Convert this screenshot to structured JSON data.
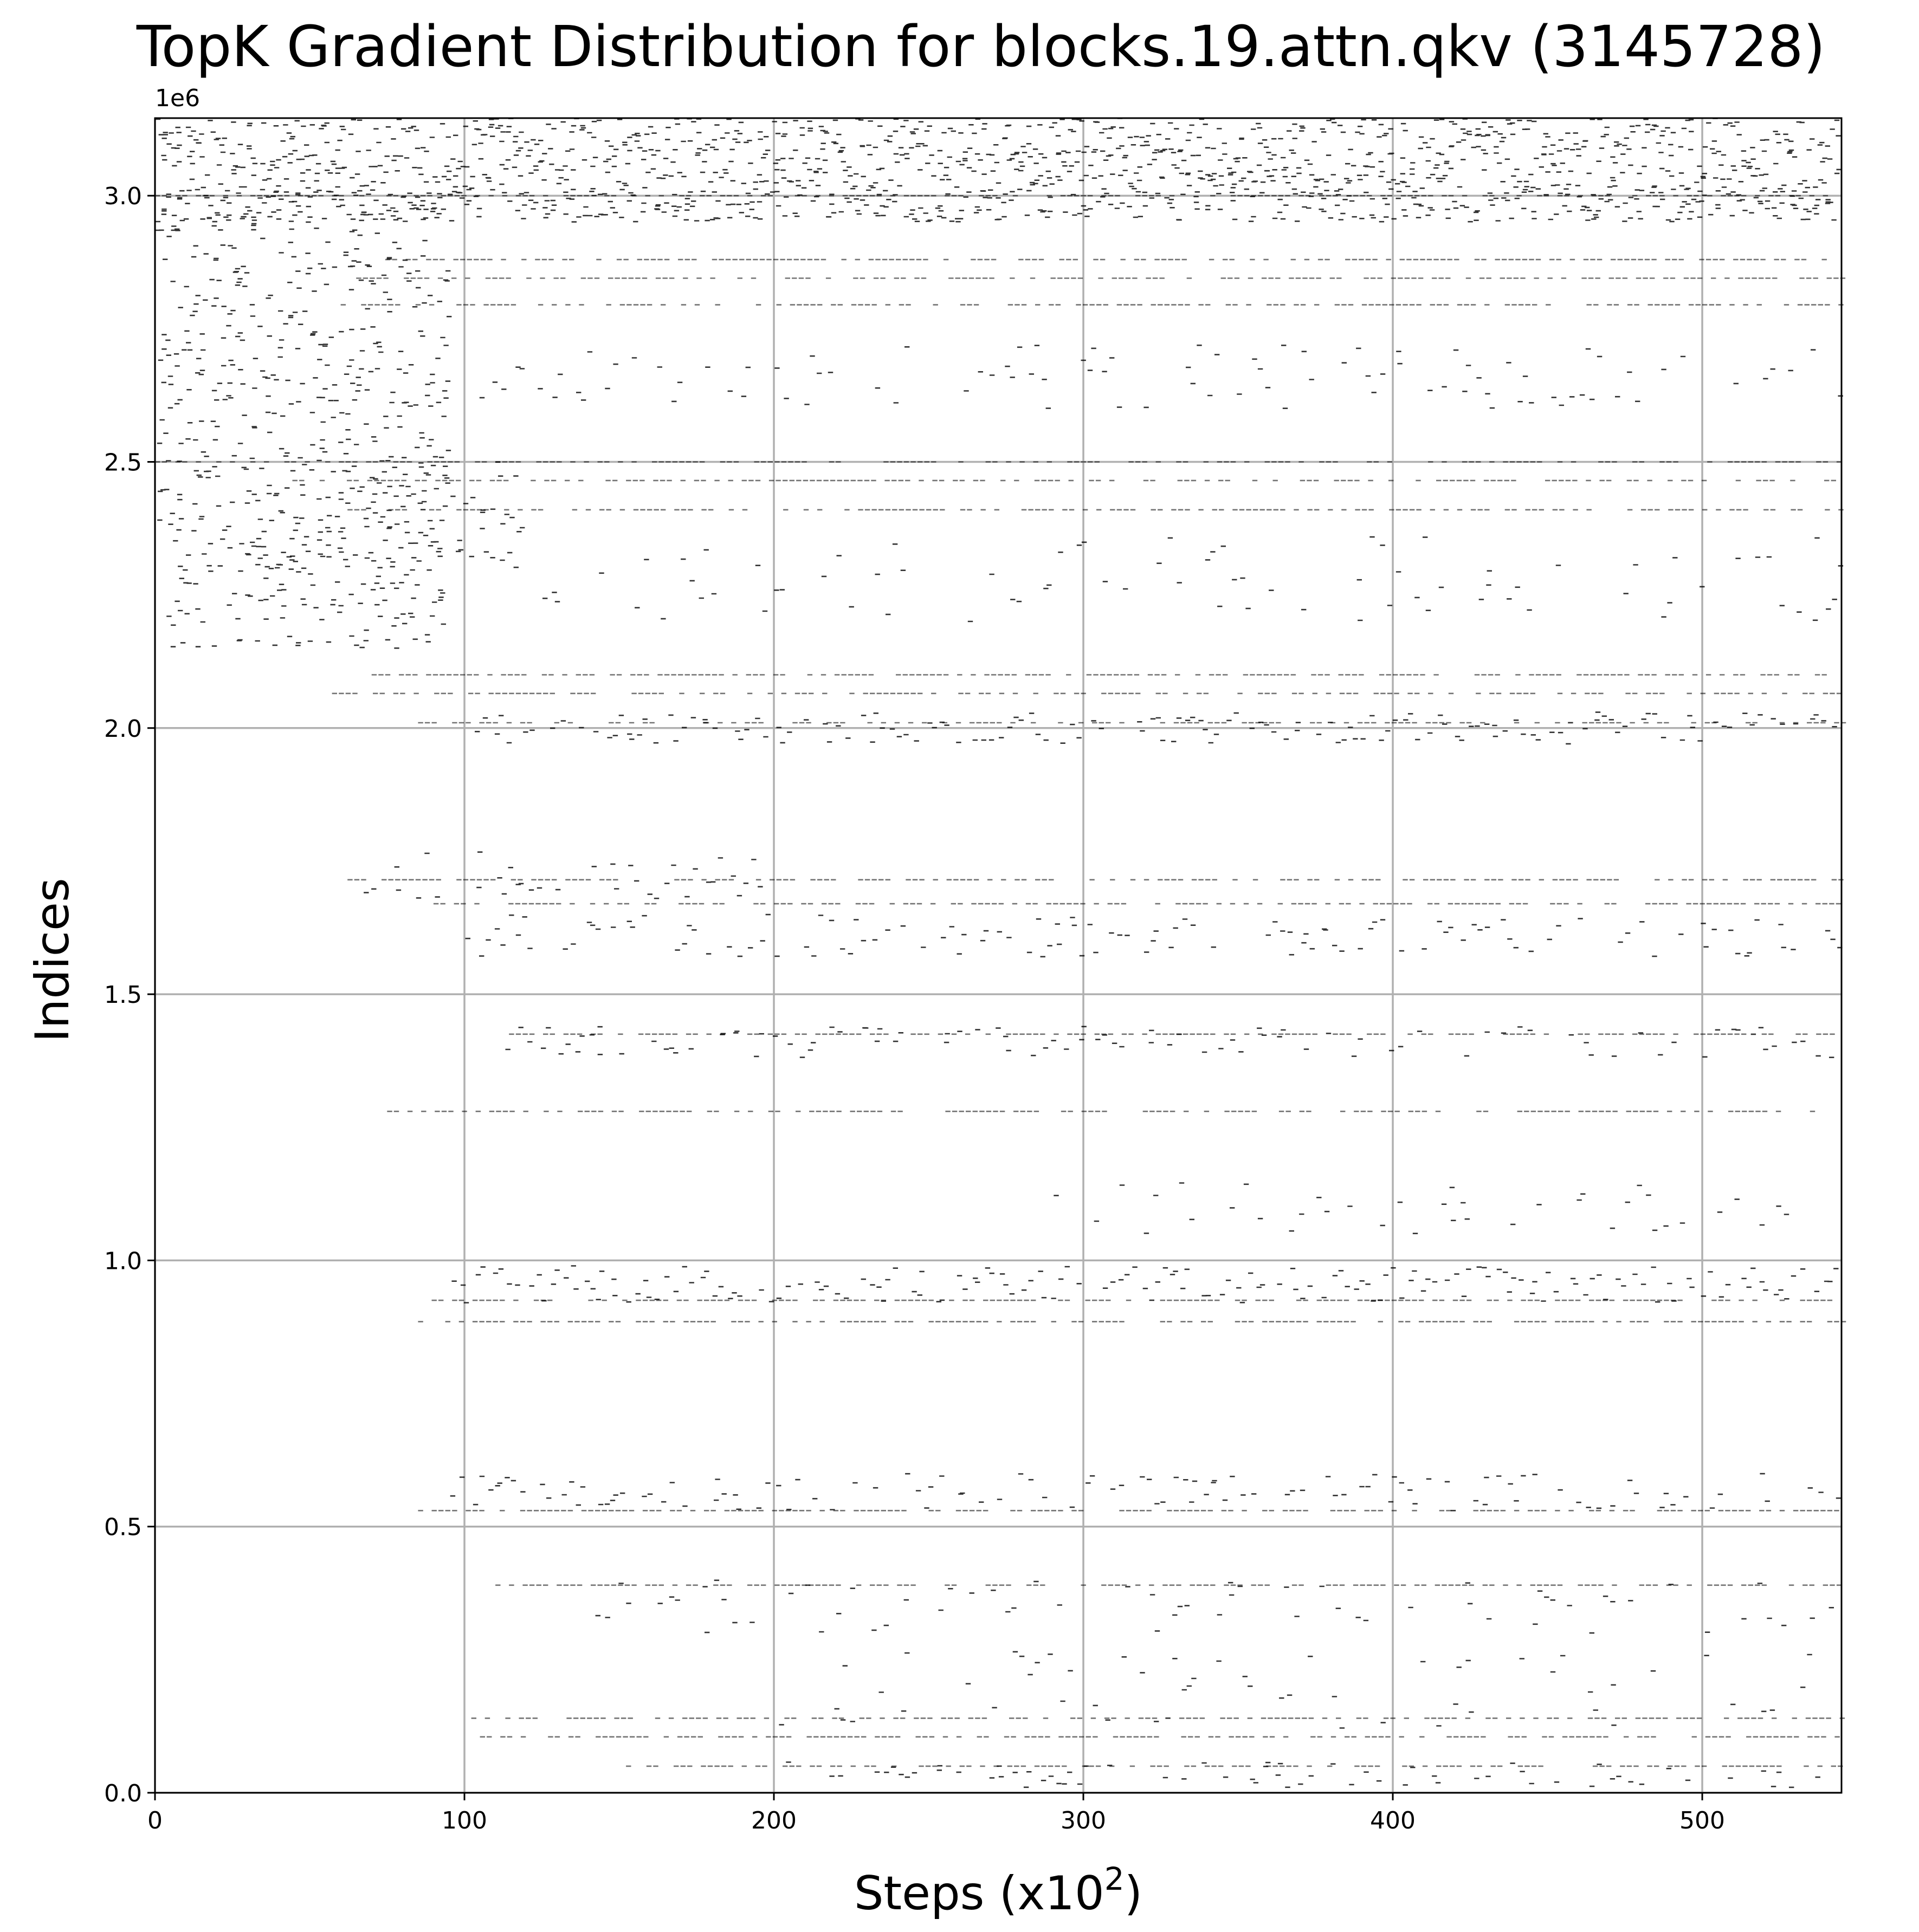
{
  "chart_data": {
    "type": "scatter",
    "title": "TopK Gradient Distribution for blocks.19.attn.qkv (3145728)",
    "xlabel_main": "Steps (x10",
    "xlabel_exp": "2",
    "xlabel_close": ")",
    "ylabel": "Indices",
    "y_offset_label": "1e6",
    "xlim": [
      0,
      545
    ],
    "ylim": [
      0,
      3145728
    ],
    "x_ticks": [
      0,
      100,
      200,
      300,
      400,
      500
    ],
    "x_tick_labels": [
      "0",
      "100",
      "200",
      "300",
      "400",
      "500"
    ],
    "y_ticks": [
      0,
      500000,
      1000000,
      1500000,
      2000000,
      2500000,
      3000000
    ],
    "y_tick_labels": [
      "0.0",
      "0.5",
      "1.0",
      "1.5",
      "2.0",
      "2.5",
      "3.0"
    ],
    "grid": true,
    "marker": "horizontal-dash",
    "marker_color": "#000000",
    "grid_color": "#b0b0b0",
    "bands": [
      {
        "y": [
          2950000,
          3145728
        ],
        "x": [
          0,
          545
        ],
        "density": 0.9
      },
      {
        "y": [
          2150000,
          3000000
        ],
        "x": [
          0,
          95
        ],
        "density": 0.55
      },
      {
        "y": [
          2300000,
          2500000
        ],
        "x": [
          40,
          120
        ],
        "density": 0.45
      },
      {
        "y": [
          2600000,
          2720000
        ],
        "x": [
          100,
          545
        ],
        "density": 0.25
      },
      {
        "y": [
          2200000,
          2360000
        ],
        "x": [
          120,
          545
        ],
        "density": 0.15
      },
      {
        "y": [
          1970000,
          2030000
        ],
        "x": [
          100,
          545
        ],
        "density": 0.45
      },
      {
        "y": [
          1570000,
          1650000
        ],
        "x": [
          100,
          545
        ],
        "density": 0.3
      },
      {
        "y": [
          1680000,
          1770000
        ],
        "x": [
          60,
          200
        ],
        "density": 0.3
      },
      {
        "y": [
          1380000,
          1440000
        ],
        "x": [
          110,
          545
        ],
        "density": 0.2
      },
      {
        "y": [
          1050000,
          1150000
        ],
        "x": [
          280,
          545
        ],
        "density": 0.15
      },
      {
        "y": [
          920000,
          990000
        ],
        "x": [
          95,
          545
        ],
        "density": 0.55
      },
      {
        "y": [
          530000,
          600000
        ],
        "x": [
          95,
          545
        ],
        "density": 0.35
      },
      {
        "y": [
          300000,
          400000
        ],
        "x": [
          140,
          545
        ],
        "density": 0.12
      },
      {
        "y": [
          120000,
          270000
        ],
        "x": [
          200,
          545
        ],
        "density": 0.12
      },
      {
        "y": [
          10000,
          60000
        ],
        "x": [
          200,
          545
        ],
        "density": 0.15
      }
    ],
    "persistent_lines": [
      {
        "y": 3000000,
        "x_start": 0
      },
      {
        "y": 2880000,
        "x_start": 70
      },
      {
        "y": 2845000,
        "x_start": 65
      },
      {
        "y": 2795000,
        "x_start": 60
      },
      {
        "y": 2500000,
        "x_start": 0
      },
      {
        "y": 2465000,
        "x_start": 40
      },
      {
        "y": 2410000,
        "x_start": 60
      },
      {
        "y": 2100000,
        "x_start": 70
      },
      {
        "y": 2065000,
        "x_start": 55
      },
      {
        "y": 2010000,
        "x_start": 85
      },
      {
        "y": 1715000,
        "x_start": 60
      },
      {
        "y": 1670000,
        "x_start": 90
      },
      {
        "y": 1425000,
        "x_start": 110
      },
      {
        "y": 1280000,
        "x_start": 75
      },
      {
        "y": 925000,
        "x_start": 85
      },
      {
        "y": 885000,
        "x_start": 85
      },
      {
        "y": 530000,
        "x_start": 85
      },
      {
        "y": 390000,
        "x_start": 110
      },
      {
        "y": 140000,
        "x_start": 100
      },
      {
        "y": 105000,
        "x_start": 105
      },
      {
        "y": 50000,
        "x_start": 150
      }
    ]
  }
}
